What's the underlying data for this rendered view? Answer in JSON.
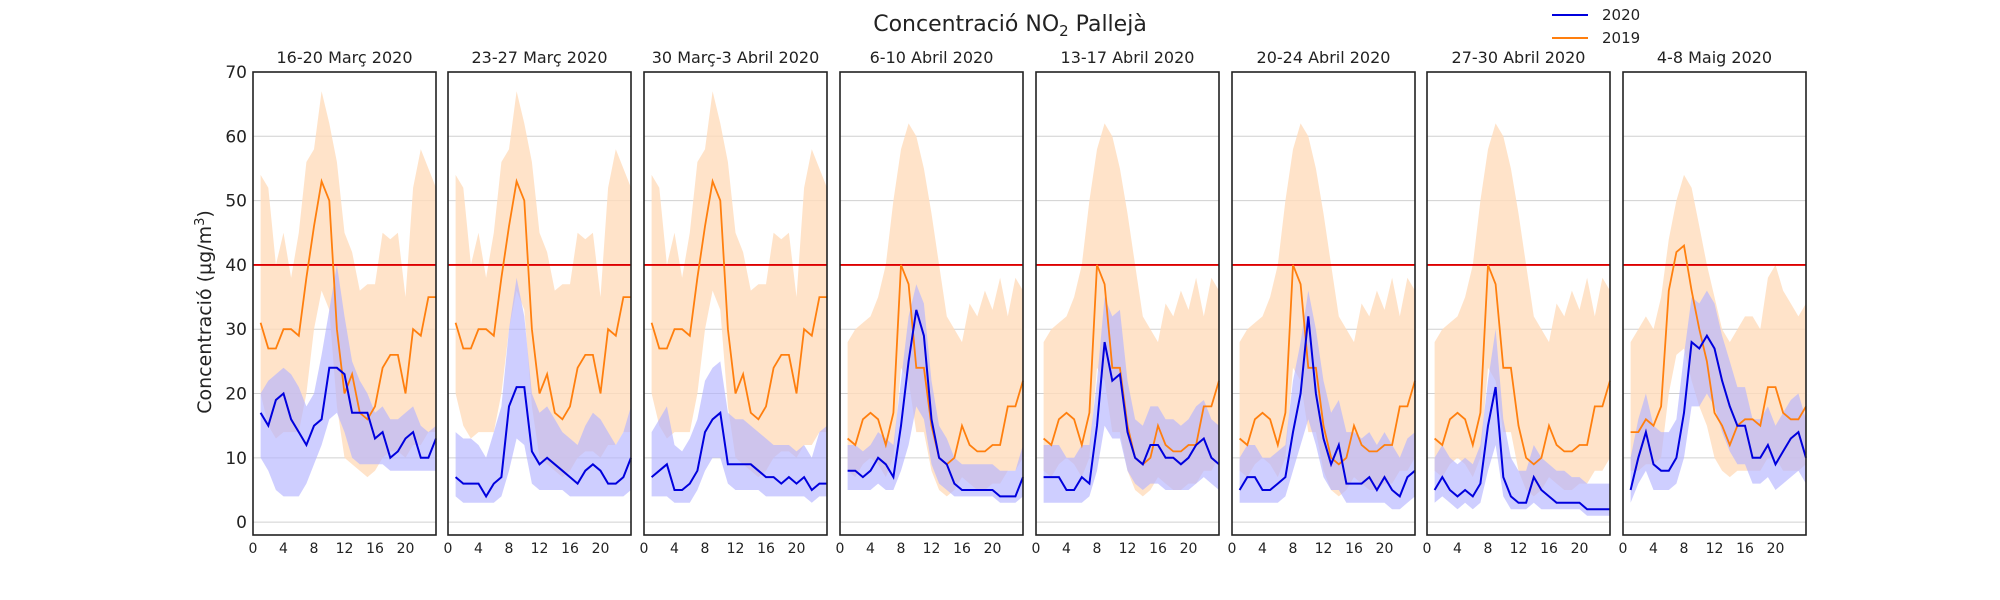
{
  "chart_data": {
    "type": "line",
    "title": "Concentració NO",
    "title_subscript": "2",
    "title_suffix": " Pallejà",
    "ylabel_main": "Concentració (µg/m",
    "ylabel_sup": "3",
    "ylabel_close": ")",
    "ylim": [
      -2,
      70
    ],
    "xlim": [
      0,
      24
    ],
    "yticks": [
      0,
      10,
      20,
      30,
      40,
      50,
      60,
      70
    ],
    "ytick_labels": [
      "0",
      "10",
      "20",
      "30",
      "40",
      "50",
      "60",
      "70"
    ],
    "xticks": [
      0,
      4,
      8,
      12,
      16,
      20
    ],
    "xtick_labels": [
      "0",
      "4",
      "8",
      "12",
      "16",
      "20"
    ],
    "threshold": 40,
    "grid": true,
    "legend": {
      "position": "top-right",
      "entries": [
        {
          "label": "2020",
          "color": "#0000dd"
        },
        {
          "label": "2019",
          "color": "#ff7f0e"
        }
      ]
    },
    "colors": {
      "line_2020": "#0000dd",
      "line_2019": "#ff7f0e",
      "band_2020": "#b3b3ff",
      "band_2019": "#ffdcbb",
      "threshold": "#dd0000",
      "grid": "#d0d0d0"
    },
    "x": [
      1,
      2,
      3,
      4,
      5,
      6,
      7,
      8,
      9,
      10,
      11,
      12,
      13,
      14,
      15,
      16,
      17,
      18,
      19,
      20,
      21,
      22,
      23,
      24
    ],
    "panels": [
      {
        "title": "16-20 Març 2020",
        "series_2020": [
          17,
          15,
          19,
          20,
          16,
          14,
          12,
          15,
          16,
          24,
          24,
          23,
          17,
          17,
          17,
          13,
          14,
          10,
          11,
          13,
          14,
          10,
          10,
          13
        ],
        "band_2020_low": [
          10,
          8,
          5,
          4,
          4,
          4,
          6,
          9,
          12,
          16,
          17,
          14,
          10,
          9,
          9,
          9,
          9,
          8,
          8,
          8,
          8,
          8,
          8,
          8
        ],
        "band_2020_high": [
          20,
          22,
          23,
          24,
          23,
          21,
          18,
          20,
          26,
          33,
          40,
          32,
          25,
          22,
          20,
          17,
          18,
          16,
          16,
          17,
          18,
          15,
          14,
          15
        ],
        "series_2019": [
          31,
          27,
          27,
          30,
          30,
          29,
          38,
          46,
          53,
          50,
          30,
          20,
          23,
          17,
          16,
          18,
          24,
          26,
          26,
          20,
          30,
          29,
          35,
          35
        ],
        "band_2019_low": [
          20,
          15,
          13,
          14,
          14,
          14,
          20,
          30,
          36,
          33,
          18,
          10,
          9,
          8,
          7,
          8,
          10,
          11,
          11,
          10,
          12,
          12,
          14,
          14
        ],
        "band_2019_high": [
          54,
          52,
          40,
          45,
          38,
          45,
          56,
          58,
          67,
          62,
          56,
          45,
          42,
          36,
          37,
          37,
          45,
          44,
          45,
          35,
          52,
          58,
          55,
          52
        ]
      },
      {
        "title": "23-27 Març 2020",
        "series_2020": [
          7,
          6,
          6,
          6,
          4,
          6,
          7,
          18,
          21,
          21,
          11,
          9,
          10,
          9,
          8,
          7,
          6,
          8,
          9,
          8,
          6,
          6,
          7,
          10
        ],
        "band_2020_low": [
          4,
          3,
          3,
          3,
          3,
          3,
          4,
          8,
          13,
          12,
          6,
          5,
          5,
          5,
          5,
          4,
          4,
          4,
          4,
          4,
          4,
          4,
          4,
          5
        ],
        "band_2020_high": [
          14,
          13,
          13,
          12,
          10,
          14,
          18,
          30,
          38,
          32,
          20,
          17,
          18,
          16,
          14,
          13,
          12,
          15,
          17,
          16,
          14,
          12,
          14,
          18
        ],
        "series_2019": [
          31,
          27,
          27,
          30,
          30,
          29,
          38,
          46,
          53,
          50,
          30,
          20,
          23,
          17,
          16,
          18,
          24,
          26,
          26,
          20,
          30,
          29,
          35,
          35
        ],
        "band_2019_low": [
          20,
          15,
          13,
          14,
          14,
          14,
          20,
          30,
          36,
          33,
          18,
          10,
          9,
          8,
          7,
          8,
          10,
          11,
          11,
          10,
          12,
          12,
          14,
          14
        ],
        "band_2019_high": [
          54,
          52,
          40,
          45,
          38,
          45,
          56,
          58,
          67,
          62,
          56,
          45,
          42,
          36,
          37,
          37,
          45,
          44,
          45,
          35,
          52,
          58,
          55,
          52
        ]
      },
      {
        "title": "30 Març-3 Abril 2020",
        "series_2020": [
          7,
          8,
          9,
          5,
          5,
          6,
          8,
          14,
          16,
          17,
          9,
          9,
          9,
          9,
          8,
          7,
          7,
          6,
          7,
          6,
          7,
          5,
          6,
          6
        ],
        "band_2020_low": [
          4,
          4,
          4,
          3,
          3,
          3,
          5,
          8,
          10,
          10,
          6,
          5,
          5,
          5,
          5,
          4,
          4,
          4,
          4,
          4,
          4,
          3,
          4,
          4
        ],
        "band_2020_high": [
          14,
          16,
          18,
          12,
          11,
          13,
          16,
          22,
          24,
          25,
          17,
          16,
          16,
          15,
          14,
          13,
          12,
          12,
          12,
          11,
          12,
          10,
          14,
          15
        ],
        "series_2019": [
          31,
          27,
          27,
          30,
          30,
          29,
          38,
          46,
          53,
          50,
          30,
          20,
          23,
          17,
          16,
          18,
          24,
          26,
          26,
          20,
          30,
          29,
          35,
          35
        ],
        "band_2019_low": [
          20,
          15,
          13,
          14,
          14,
          14,
          20,
          30,
          36,
          33,
          18,
          10,
          9,
          8,
          7,
          8,
          10,
          11,
          11,
          10,
          12,
          12,
          14,
          14
        ],
        "band_2019_high": [
          54,
          52,
          40,
          45,
          38,
          45,
          56,
          58,
          67,
          62,
          56,
          45,
          42,
          36,
          37,
          37,
          45,
          44,
          45,
          35,
          52,
          58,
          55,
          52
        ]
      },
      {
        "title": "6-10 Abril 2020",
        "series_2020": [
          8,
          8,
          7,
          8,
          10,
          9,
          7,
          15,
          25,
          33,
          29,
          16,
          10,
          9,
          6,
          5,
          5,
          5,
          5,
          5,
          4,
          4,
          4,
          7
        ],
        "band_2020_low": [
          5,
          5,
          5,
          5,
          6,
          5,
          5,
          8,
          12,
          18,
          16,
          9,
          6,
          5,
          4,
          4,
          4,
          4,
          4,
          4,
          3,
          3,
          3,
          4
        ],
        "band_2020_high": [
          12,
          12,
          11,
          12,
          14,
          13,
          12,
          22,
          32,
          37,
          34,
          22,
          15,
          13,
          10,
          9,
          9,
          9,
          9,
          9,
          8,
          8,
          8,
          12
        ],
        "series_2019": [
          13,
          12,
          16,
          17,
          16,
          12,
          17,
          40,
          37,
          24,
          24,
          15,
          10,
          9,
          10,
          15,
          12,
          11,
          11,
          12,
          12,
          18,
          18,
          22
        ],
        "band_2019_low": [
          8,
          7,
          9,
          10,
          9,
          7,
          10,
          24,
          22,
          14,
          14,
          8,
          5,
          4,
          5,
          7,
          6,
          5,
          5,
          6,
          6,
          8,
          8,
          10
        ],
        "band_2019_high": [
          28,
          30,
          31,
          32,
          35,
          40,
          50,
          58,
          62,
          60,
          55,
          48,
          40,
          32,
          30,
          28,
          34,
          32,
          36,
          33,
          38,
          32,
          38,
          36
        ]
      },
      {
        "title": "13-17 Abril 2020",
        "series_2020": [
          7,
          7,
          7,
          5,
          5,
          7,
          6,
          15,
          28,
          22,
          23,
          14,
          10,
          9,
          12,
          12,
          10,
          10,
          9,
          10,
          12,
          13,
          10,
          9
        ],
        "band_2020_low": [
          3,
          3,
          3,
          3,
          3,
          3,
          4,
          8,
          15,
          13,
          13,
          8,
          6,
          5,
          6,
          6,
          5,
          5,
          5,
          5,
          6,
          7,
          6,
          5
        ],
        "band_2020_high": [
          12,
          12,
          12,
          10,
          10,
          12,
          12,
          22,
          35,
          32,
          33,
          22,
          16,
          15,
          18,
          18,
          16,
          16,
          15,
          16,
          18,
          19,
          16,
          15
        ],
        "series_2019": [
          13,
          12,
          16,
          17,
          16,
          12,
          17,
          40,
          37,
          24,
          24,
          15,
          10,
          9,
          10,
          15,
          12,
          11,
          11,
          12,
          12,
          18,
          18,
          22
        ],
        "band_2019_low": [
          8,
          7,
          9,
          10,
          9,
          7,
          10,
          24,
          22,
          14,
          14,
          8,
          5,
          4,
          5,
          7,
          6,
          5,
          5,
          6,
          6,
          8,
          8,
          10
        ],
        "band_2019_high": [
          28,
          30,
          31,
          32,
          35,
          40,
          50,
          58,
          62,
          60,
          55,
          48,
          40,
          32,
          30,
          28,
          34,
          32,
          36,
          33,
          38,
          32,
          38,
          36
        ]
      },
      {
        "title": "20-24 Abril 2020",
        "series_2020": [
          5,
          7,
          7,
          5,
          5,
          6,
          7,
          14,
          20,
          32,
          20,
          13,
          9,
          12,
          6,
          6,
          6,
          7,
          5,
          7,
          5,
          4,
          7,
          8
        ],
        "band_2020_low": [
          3,
          3,
          3,
          3,
          3,
          3,
          4,
          8,
          12,
          16,
          12,
          7,
          5,
          5,
          3,
          3,
          3,
          3,
          3,
          3,
          2,
          2,
          3,
          4
        ],
        "band_2020_high": [
          10,
          12,
          12,
          10,
          10,
          11,
          12,
          22,
          28,
          36,
          30,
          22,
          17,
          19,
          14,
          14,
          13,
          14,
          12,
          14,
          12,
          10,
          13,
          14
        ],
        "series_2019": [
          13,
          12,
          16,
          17,
          16,
          12,
          17,
          40,
          37,
          24,
          24,
          15,
          10,
          9,
          10,
          15,
          12,
          11,
          11,
          12,
          12,
          18,
          18,
          22
        ],
        "band_2019_low": [
          8,
          7,
          9,
          10,
          9,
          7,
          10,
          24,
          22,
          14,
          14,
          8,
          5,
          4,
          5,
          7,
          6,
          5,
          5,
          6,
          6,
          8,
          8,
          10
        ],
        "band_2019_high": [
          28,
          30,
          31,
          32,
          35,
          40,
          50,
          58,
          62,
          60,
          55,
          48,
          40,
          32,
          30,
          28,
          34,
          32,
          36,
          33,
          38,
          32,
          38,
          36
        ]
      },
      {
        "title": "27-30 Abril 2020",
        "series_2020": [
          5,
          7,
          5,
          4,
          5,
          4,
          6,
          15,
          21,
          7,
          4,
          3,
          3,
          7,
          5,
          4,
          3,
          3,
          3,
          3,
          2,
          2,
          2,
          2
        ],
        "band_2020_low": [
          3,
          4,
          3,
          2,
          3,
          2,
          3,
          8,
          12,
          4,
          2,
          2,
          2,
          3,
          2,
          2,
          2,
          2,
          2,
          2,
          1,
          1,
          1,
          1
        ],
        "band_2020_high": [
          10,
          12,
          10,
          9,
          10,
          9,
          12,
          22,
          30,
          16,
          10,
          8,
          8,
          12,
          10,
          9,
          8,
          8,
          7,
          7,
          6,
          6,
          6,
          6
        ],
        "series_2019": [
          13,
          12,
          16,
          17,
          16,
          12,
          17,
          40,
          37,
          24,
          24,
          15,
          10,
          9,
          10,
          15,
          12,
          11,
          11,
          12,
          12,
          18,
          18,
          22
        ],
        "band_2019_low": [
          8,
          7,
          9,
          10,
          9,
          7,
          10,
          24,
          22,
          14,
          14,
          8,
          5,
          4,
          5,
          7,
          6,
          5,
          5,
          6,
          6,
          8,
          8,
          10
        ],
        "band_2019_high": [
          28,
          30,
          31,
          32,
          35,
          40,
          50,
          58,
          62,
          60,
          55,
          48,
          40,
          32,
          30,
          28,
          34,
          32,
          36,
          33,
          38,
          32,
          38,
          36
        ]
      },
      {
        "title": "4-8 Maig 2020",
        "series_2020": [
          5,
          10,
          14,
          9,
          8,
          8,
          10,
          17,
          28,
          27,
          29,
          27,
          22,
          18,
          15,
          15,
          10,
          10,
          12,
          9,
          11,
          13,
          14,
          10
        ],
        "band_2020_low": [
          3,
          6,
          8,
          5,
          5,
          5,
          6,
          10,
          18,
          18,
          20,
          18,
          14,
          11,
          9,
          9,
          6,
          6,
          7,
          5,
          6,
          7,
          8,
          6
        ],
        "band_2020_high": [
          10,
          16,
          20,
          15,
          14,
          14,
          16,
          26,
          35,
          34,
          36,
          34,
          29,
          25,
          21,
          21,
          16,
          16,
          18,
          15,
          17,
          19,
          20,
          16
        ],
        "series_2019": [
          14,
          14,
          16,
          15,
          18,
          36,
          42,
          43,
          36,
          30,
          25,
          17,
          15,
          12,
          15,
          16,
          16,
          15,
          21,
          21,
          17,
          16,
          16,
          18
        ],
        "band_2019_low": [
          8,
          8,
          9,
          9,
          10,
          20,
          26,
          27,
          22,
          18,
          15,
          10,
          8,
          7,
          8,
          8,
          8,
          8,
          10,
          10,
          8,
          8,
          8,
          9
        ],
        "band_2019_high": [
          28,
          30,
          32,
          30,
          35,
          44,
          50,
          54,
          52,
          46,
          40,
          35,
          30,
          28,
          30,
          32,
          32,
          30,
          38,
          40,
          36,
          34,
          32,
          34
        ]
      }
    ]
  }
}
